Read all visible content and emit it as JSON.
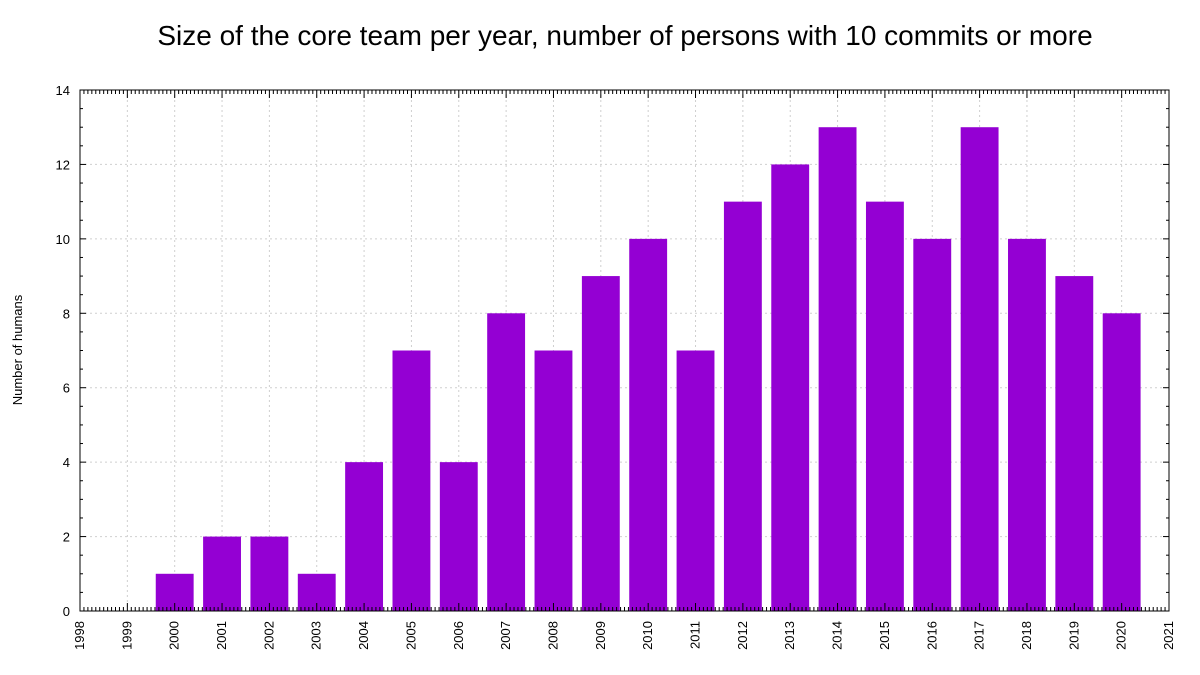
{
  "chart_data": {
    "type": "bar",
    "title": "Size of the core team per year, number of persons with 10 commits or more",
    "xlabel": "",
    "ylabel": "Number of humans",
    "x_tick_labels": [
      "1998",
      "1999",
      "2000",
      "2001",
      "2002",
      "2003",
      "2004",
      "2005",
      "2006",
      "2007",
      "2008",
      "2009",
      "2010",
      "2011",
      "2012",
      "2013",
      "2014",
      "2015",
      "2016",
      "2017",
      "2018",
      "2019",
      "2020",
      "2021"
    ],
    "categories": [
      "2000",
      "2001",
      "2002",
      "2003",
      "2004",
      "2005",
      "2006",
      "2007",
      "2008",
      "2009",
      "2010",
      "2011",
      "2012",
      "2013",
      "2014",
      "2015",
      "2016",
      "2017",
      "2018",
      "2019",
      "2020"
    ],
    "values": [
      1,
      2,
      2,
      1,
      4,
      7,
      4,
      8,
      7,
      9,
      10,
      7,
      11,
      12,
      13,
      11,
      10,
      13,
      10,
      9,
      8
    ],
    "xlim": [
      1998,
      2021
    ],
    "ylim": [
      0,
      14
    ],
    "y_ticks": [
      0,
      2,
      4,
      6,
      8,
      10,
      12,
      14
    ],
    "grid": true,
    "bar_color": "#9400d3"
  }
}
